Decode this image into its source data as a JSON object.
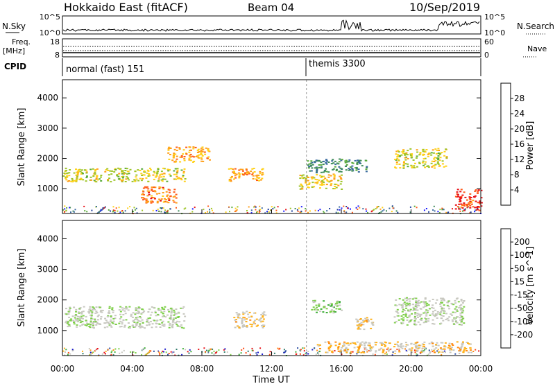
{
  "header": {
    "site": "Hokkaido East (fitACF)",
    "beam": "Beam 04",
    "date": "10/Sep/2019"
  },
  "strips": {
    "nsky_label": "N.Sky",
    "nsearch_label": "N.Search",
    "nsky_ticks": [
      "10^5",
      "10^0"
    ],
    "nsearch_ticks": [
      "10^5",
      "10^0"
    ],
    "freq_label_line1": "Freq.",
    "freq_label_line2": "[MHz]",
    "freq_ticks": [
      "18",
      "8"
    ],
    "nave_label": "Nave",
    "nave_ticks": [
      "60",
      "0"
    ],
    "cpid_label": "CPID",
    "modes": [
      {
        "name": "normal (fast) 151",
        "start_hour": 0
      },
      {
        "name": "themis 3300",
        "start_hour": 14
      }
    ]
  },
  "colors": {
    "power": [
      "#1a1aff",
      "#2040a0",
      "#3a6aa0",
      "#3f8c5a",
      "#5aab3a",
      "#9ec52a",
      "#ffd11a",
      "#ff9f1a",
      "#ff5a1a",
      "#e8141a"
    ],
    "velocity": [
      "#e8141a",
      "#ff4a14",
      "#ff8c14",
      "#ffb21a",
      "#c8c8c0",
      "#c8c8c0",
      "#7fd04a",
      "#3fae3a",
      "#2f7a6a",
      "#2a4aa0",
      "#1a1acc"
    ]
  },
  "chart_data": [
    {
      "type": "heatmap",
      "ylabel": "Slant Range [km]",
      "xlabel": "",
      "ylim": [
        180,
        4600
      ],
      "xlim": [
        0,
        24
      ],
      "yticks": [
        1000,
        2000,
        3000,
        4000
      ],
      "colorbar_label": "Power [dB]",
      "colorbar_ticks": [
        "28",
        "24",
        "20",
        "16",
        "12",
        "8",
        "4"
      ],
      "cmap_range": [
        0,
        30
      ],
      "regions": [
        {
          "t0": 0.0,
          "t1": 7.0,
          "r0": 1250,
          "r1": 1700,
          "value": 18
        },
        {
          "t0": 4.5,
          "t1": 6.5,
          "r0": 550,
          "r1": 1100,
          "value": 24
        },
        {
          "t0": 6.0,
          "t1": 8.4,
          "r0": 1900,
          "r1": 2400,
          "value": 22
        },
        {
          "t0": 9.5,
          "t1": 11.5,
          "r0": 1250,
          "r1": 1700,
          "value": 22
        },
        {
          "t0": 14.0,
          "t1": 17.5,
          "r0": 1550,
          "r1": 2000,
          "value": 10
        },
        {
          "t0": 13.5,
          "t1": 16.0,
          "r0": 1000,
          "r1": 1500,
          "value": 20
        },
        {
          "t0": 19.0,
          "t1": 22.0,
          "r0": 1700,
          "r1": 2350,
          "value": 18
        },
        {
          "t0": 22.5,
          "t1": 24.0,
          "r0": 300,
          "r1": 1000,
          "value": 27
        }
      ]
    },
    {
      "type": "heatmap",
      "ylabel": "Slant Range [km]",
      "xlabel": "Time UT",
      "ylim": [
        180,
        4600
      ],
      "xlim": [
        0,
        24
      ],
      "yticks": [
        1000,
        2000,
        3000,
        4000
      ],
      "xticks": [
        "00:00",
        "04:00",
        "08:00",
        "12:00",
        "16:00",
        "20:00",
        "00:00"
      ],
      "colorbar_label": "Velocity [m s^-1]",
      "colorbar_ticks": [
        "200",
        "100",
        "50",
        "15",
        "-15",
        "-50",
        "-100",
        "-200"
      ],
      "cmap_range": [
        -250,
        250
      ],
      "regions": [
        {
          "t0": 0.0,
          "t1": 7.0,
          "r0": 1100,
          "r1": 1800,
          "value": 0
        },
        {
          "t0": 9.8,
          "t1": 11.6,
          "r0": 1100,
          "r1": 1650,
          "value": -60
        },
        {
          "t0": 14.2,
          "t1": 16.0,
          "r0": 1600,
          "r1": 2000,
          "value": 40
        },
        {
          "t0": 16.8,
          "t1": 17.8,
          "r0": 1050,
          "r1": 1450,
          "value": -60
        },
        {
          "t0": 14.5,
          "t1": 23.5,
          "r0": 300,
          "r1": 650,
          "value": -70
        },
        {
          "t0": 19.0,
          "t1": 23.0,
          "r0": 1200,
          "r1": 2100,
          "value": 0
        }
      ]
    }
  ]
}
